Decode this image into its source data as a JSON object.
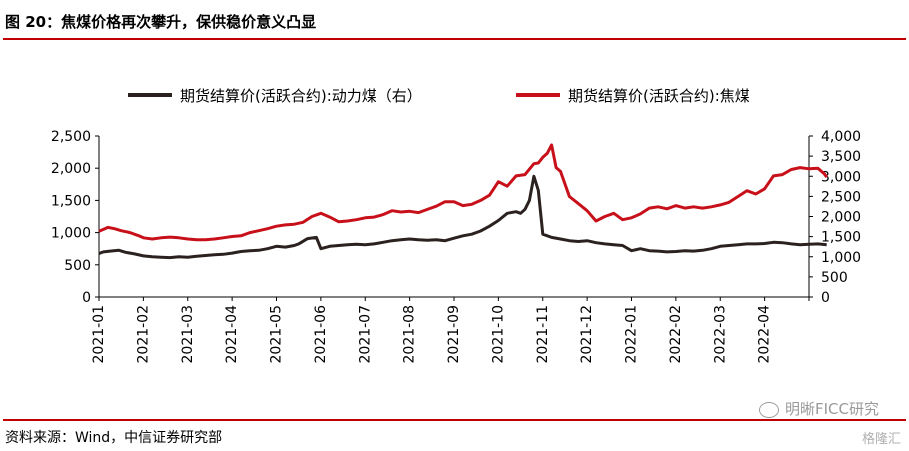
{
  "header": {
    "title": "图 20：焦煤价格再次攀升，保供稳价意义凸显"
  },
  "footer": {
    "source": "资料来源：Wind，中信证券研究部"
  },
  "watermark": {
    "main": "明晰FICC研究",
    "secondary": "格隆汇"
  },
  "colors": {
    "accent": "#c00000",
    "coal_line": "#2b2220",
    "coking_line": "#c8101a"
  },
  "chart_data": {
    "type": "line",
    "title": "",
    "xlabel": "",
    "ylabel": "",
    "x_tick_labels": [
      "2021-01",
      "2021-02",
      "2021-03",
      "2021-04",
      "2021-05",
      "2021-06",
      "2021-07",
      "2021-08",
      "2021-09",
      "2021-10",
      "2021-11",
      "2021-12",
      "2022-01",
      "2022-02",
      "2022-03",
      "2022-04"
    ],
    "y_left": {
      "ylim": [
        0,
        2500
      ],
      "ticks": [
        "0",
        "500",
        "1,000",
        "1,500",
        "2,000",
        "2,500"
      ]
    },
    "y_right": {
      "ylim": [
        0,
        4000
      ],
      "ticks": [
        "0",
        "500",
        "1,000",
        "1,500",
        "2,000",
        "2,500",
        "3,000",
        "3,500",
        "4,000"
      ]
    },
    "legend_position": "top",
    "grid": false,
    "series": [
      {
        "name": "期货结算价(活跃合约):动力煤（右）",
        "axis": "right",
        "color": "#2b2220",
        "x": [
          0,
          0.1,
          0.25,
          0.45,
          0.6,
          0.8,
          1,
          1.2,
          1.4,
          1.6,
          1.8,
          2,
          2.2,
          2.4,
          2.6,
          2.8,
          3,
          3.2,
          3.4,
          3.6,
          3.8,
          4,
          4.2,
          4.4,
          4.5,
          4.7,
          4.9,
          5,
          5.2,
          5.4,
          5.6,
          5.8,
          6,
          6.2,
          6.4,
          6.6,
          6.8,
          7,
          7.2,
          7.4,
          7.6,
          7.8,
          8,
          8.2,
          8.4,
          8.6,
          8.8,
          9,
          9.2,
          9.4,
          9.5,
          9.6,
          9.7,
          9.8,
          9.9,
          10,
          10.2,
          10.4,
          10.6,
          10.8,
          11,
          11.2,
          11.4,
          11.6,
          11.8,
          12,
          12.2,
          12.4,
          12.6,
          12.8,
          13,
          13.2,
          13.4,
          13.6,
          13.8,
          14,
          14.2,
          14.4,
          14.6,
          14.8,
          15,
          15.2,
          15.4,
          15.6,
          15.8,
          16,
          16.2,
          16.4
        ],
        "values": [
          1080,
          1120,
          1140,
          1160,
          1110,
          1070,
          1020,
          1000,
          990,
          980,
          1000,
          990,
          1010,
          1030,
          1050,
          1060,
          1090,
          1130,
          1150,
          1160,
          1200,
          1260,
          1240,
          1280,
          1320,
          1450,
          1480,
          1200,
          1260,
          1280,
          1300,
          1310,
          1300,
          1320,
          1360,
          1400,
          1420,
          1440,
          1420,
          1410,
          1420,
          1400,
          1460,
          1520,
          1560,
          1640,
          1760,
          1900,
          2080,
          2120,
          2080,
          2180,
          2400,
          3000,
          2650,
          1560,
          1480,
          1440,
          1400,
          1380,
          1400,
          1350,
          1320,
          1300,
          1280,
          1150,
          1200,
          1150,
          1140,
          1120,
          1130,
          1150,
          1140,
          1160,
          1200,
          1260,
          1280,
          1300,
          1320,
          1320,
          1330,
          1360,
          1350,
          1320,
          1300,
          1310,
          1320,
          1300
        ]
      },
      {
        "name": "期货结算价(活跃合约):焦煤",
        "axis": "left",
        "color": "#c8101a",
        "x": [
          0,
          0.1,
          0.2,
          0.35,
          0.5,
          0.7,
          0.9,
          1,
          1.2,
          1.4,
          1.6,
          1.8,
          2,
          2.2,
          2.4,
          2.6,
          2.8,
          3,
          3.2,
          3.4,
          3.6,
          3.8,
          4,
          4.2,
          4.4,
          4.6,
          4.8,
          5,
          5.2,
          5.4,
          5.6,
          5.8,
          6,
          6.2,
          6.4,
          6.6,
          6.8,
          7,
          7.2,
          7.4,
          7.6,
          7.8,
          8,
          8.2,
          8.4,
          8.6,
          8.8,
          9,
          9.2,
          9.4,
          9.6,
          9.8,
          9.9,
          10,
          10.1,
          10.2,
          10.3,
          10.4,
          10.6,
          10.8,
          11,
          11.2,
          11.4,
          11.6,
          11.8,
          12,
          12.2,
          12.4,
          12.6,
          12.8,
          13,
          13.2,
          13.4,
          13.6,
          13.8,
          14,
          14.2,
          14.4,
          14.6,
          14.8,
          15,
          15.2,
          15.4,
          15.6,
          15.8,
          16,
          16.2,
          16.35,
          16.4
        ],
        "values": [
          1020,
          1050,
          1080,
          1060,
          1030,
          1000,
          950,
          920,
          900,
          920,
          930,
          920,
          900,
          890,
          890,
          900,
          920,
          940,
          950,
          1000,
          1030,
          1060,
          1100,
          1120,
          1130,
          1160,
          1250,
          1300,
          1240,
          1170,
          1180,
          1200,
          1230,
          1240,
          1280,
          1340,
          1320,
          1330,
          1310,
          1360,
          1410,
          1480,
          1480,
          1420,
          1440,
          1500,
          1580,
          1790,
          1720,
          1880,
          1900,
          2070,
          2080,
          2170,
          2230,
          2360,
          2010,
          1950,
          1560,
          1450,
          1340,
          1180,
          1250,
          1300,
          1200,
          1230,
          1290,
          1380,
          1400,
          1370,
          1420,
          1380,
          1400,
          1380,
          1400,
          1430,
          1470,
          1560,
          1650,
          1600,
          1680,
          1880,
          1900,
          1980,
          2010,
          1990,
          2000,
          1910,
          1860
        ]
      }
    ]
  }
}
